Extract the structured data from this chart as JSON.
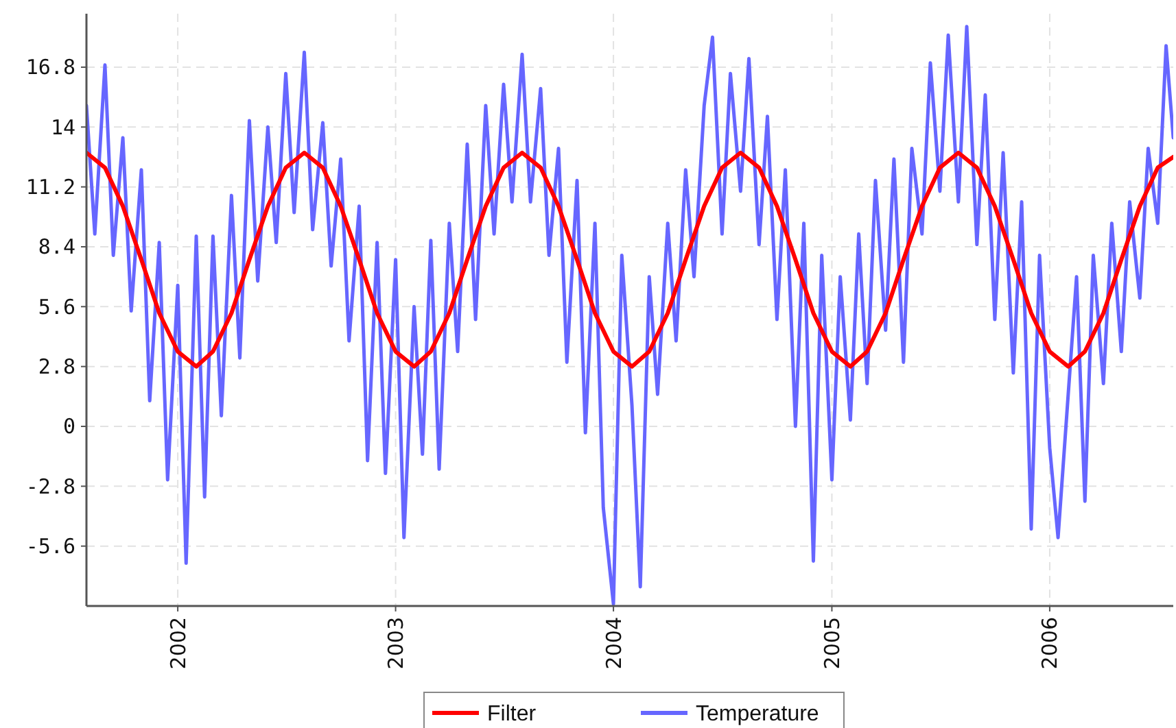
{
  "chart_data": {
    "type": "line",
    "xlim": [
      "2001-08-01",
      "2006-07-27"
    ],
    "xticks": [
      {
        "value": "2002-01-01",
        "label": "2002"
      },
      {
        "value": "2003-01-01",
        "label": "2003"
      },
      {
        "value": "2004-01-01",
        "label": "2004"
      },
      {
        "value": "2005-01-01",
        "label": "2005"
      },
      {
        "value": "2006-01-01",
        "label": "2006"
      }
    ],
    "ylim": [
      -8.4,
      19.3
    ],
    "yticks": [
      -5.6,
      -2.8,
      0,
      2.8,
      5.6,
      8.4,
      11.2,
      14,
      16.8
    ],
    "grid": true,
    "legend": "bottom",
    "series": [
      {
        "name": "Filter",
        "color": "#ff0000",
        "x": [
          "2001-08-01",
          "2001-09-01",
          "2001-10-01",
          "2001-11-01",
          "2001-12-01",
          "2002-01-01",
          "2002-02-01",
          "2002-03-01",
          "2002-04-01",
          "2002-05-01",
          "2002-06-01",
          "2002-07-01",
          "2002-08-01",
          "2002-09-01",
          "2002-10-01",
          "2002-11-01",
          "2002-12-01",
          "2003-01-01",
          "2003-02-01",
          "2003-03-01",
          "2003-04-01",
          "2003-05-01",
          "2003-06-01",
          "2003-07-01",
          "2003-08-01",
          "2003-09-01",
          "2003-10-01",
          "2003-11-01",
          "2003-12-01",
          "2004-01-01",
          "2004-02-01",
          "2004-03-01",
          "2004-04-01",
          "2004-05-01",
          "2004-06-01",
          "2004-07-01",
          "2004-08-01",
          "2004-09-01",
          "2004-10-01",
          "2004-11-01",
          "2004-12-01",
          "2005-01-01",
          "2005-02-01",
          "2005-03-01",
          "2005-04-01",
          "2005-05-01",
          "2005-06-01",
          "2005-07-01",
          "2005-08-01",
          "2005-09-01",
          "2005-10-01",
          "2005-11-01",
          "2005-12-01",
          "2006-01-01",
          "2006-02-01",
          "2006-03-01",
          "2006-04-01",
          "2006-05-01",
          "2006-06-01",
          "2006-07-01",
          "2006-07-27"
        ],
        "values": [
          12.8,
          12.1,
          10.3,
          7.8,
          5.3,
          3.5,
          2.8,
          3.5,
          5.3,
          7.8,
          10.3,
          12.1,
          12.8,
          12.1,
          10.3,
          7.8,
          5.3,
          3.5,
          2.8,
          3.5,
          5.3,
          7.8,
          10.3,
          12.1,
          12.8,
          12.1,
          10.3,
          7.8,
          5.3,
          3.5,
          2.8,
          3.5,
          5.3,
          7.8,
          10.3,
          12.1,
          12.8,
          12.1,
          10.3,
          7.8,
          5.3,
          3.5,
          2.8,
          3.5,
          5.3,
          7.8,
          10.3,
          12.1,
          12.8,
          12.1,
          10.3,
          7.8,
          5.3,
          3.5,
          2.8,
          3.5,
          5.3,
          7.8,
          10.3,
          12.1,
          12.6
        ]
      },
      {
        "name": "Temperature",
        "color": "#6666ff",
        "x": [
          "2001-08-01",
          "2001-08-15",
          "2001-09-01",
          "2001-09-15",
          "2001-10-01",
          "2001-10-15",
          "2001-11-01",
          "2001-11-15",
          "2001-12-01",
          "2001-12-15",
          "2002-01-01",
          "2002-01-15",
          "2002-02-01",
          "2002-02-15",
          "2002-03-01",
          "2002-03-15",
          "2002-04-01",
          "2002-04-15",
          "2002-05-01",
          "2002-05-15",
          "2002-06-01",
          "2002-06-15",
          "2002-07-01",
          "2002-07-15",
          "2002-08-01",
          "2002-08-15",
          "2002-09-01",
          "2002-09-15",
          "2002-10-01",
          "2002-10-15",
          "2002-11-01",
          "2002-11-15",
          "2002-12-01",
          "2002-12-15",
          "2003-01-01",
          "2003-01-15",
          "2003-02-01",
          "2003-02-15",
          "2003-03-01",
          "2003-03-15",
          "2003-04-01",
          "2003-04-15",
          "2003-05-01",
          "2003-05-15",
          "2003-06-01",
          "2003-06-15",
          "2003-07-01",
          "2003-07-15",
          "2003-08-01",
          "2003-08-15",
          "2003-09-01",
          "2003-09-15",
          "2003-10-01",
          "2003-10-15",
          "2003-11-01",
          "2003-11-15",
          "2003-12-01",
          "2003-12-15",
          "2004-01-01",
          "2004-01-15",
          "2004-02-01",
          "2004-02-15",
          "2004-03-01",
          "2004-03-15",
          "2004-04-01",
          "2004-04-15",
          "2004-05-01",
          "2004-05-15",
          "2004-06-01",
          "2004-06-15",
          "2004-07-01",
          "2004-07-15",
          "2004-08-01",
          "2004-08-15",
          "2004-09-01",
          "2004-09-15",
          "2004-10-01",
          "2004-10-15",
          "2004-11-01",
          "2004-11-15",
          "2004-12-01",
          "2004-12-15",
          "2005-01-01",
          "2005-01-15",
          "2005-02-01",
          "2005-02-15",
          "2005-03-01",
          "2005-03-15",
          "2005-04-01",
          "2005-04-15",
          "2005-05-01",
          "2005-05-15",
          "2005-06-01",
          "2005-06-15",
          "2005-07-01",
          "2005-07-15",
          "2005-08-01",
          "2005-08-15",
          "2005-09-01",
          "2005-09-15",
          "2005-10-01",
          "2005-10-15",
          "2005-11-01",
          "2005-11-15",
          "2005-12-01",
          "2005-12-15",
          "2006-01-01",
          "2006-01-15",
          "2006-02-01",
          "2006-02-15",
          "2006-03-01",
          "2006-03-15",
          "2006-04-01",
          "2006-04-15",
          "2006-05-01",
          "2006-05-15",
          "2006-06-01",
          "2006-06-15",
          "2006-07-01",
          "2006-07-15",
          "2006-07-27"
        ],
        "values": [
          15.0,
          9.0,
          16.9,
          8.0,
          13.5,
          5.4,
          12.0,
          1.2,
          8.6,
          -2.5,
          6.6,
          -6.4,
          8.9,
          -3.3,
          8.9,
          0.5,
          10.8,
          3.2,
          14.3,
          6.8,
          14.0,
          8.6,
          16.5,
          10.0,
          17.5,
          9.2,
          14.2,
          7.5,
          12.5,
          4.0,
          10.3,
          -1.6,
          8.6,
          -2.2,
          7.8,
          -5.2,
          5.6,
          -1.3,
          8.7,
          -2.0,
          9.5,
          3.5,
          13.2,
          5.0,
          15.0,
          9.0,
          16.0,
          10.5,
          17.4,
          10.5,
          15.8,
          8.0,
          13.0,
          3.0,
          11.5,
          -0.3,
          9.5,
          -3.8,
          -8.3,
          8.0,
          1.0,
          -7.5,
          7.0,
          1.5,
          9.5,
          4.0,
          12.0,
          7.0,
          15.0,
          18.2,
          9.0,
          16.5,
          11.0,
          17.2,
          8.5,
          14.5,
          5.0,
          12.0,
          0.0,
          9.5,
          -6.3,
          8.0,
          -2.5,
          7.0,
          0.3,
          9.0,
          2.0,
          11.5,
          4.5,
          12.5,
          3.0,
          13.0,
          9.0,
          17.0,
          11.0,
          18.3,
          10.5,
          18.7,
          8.5,
          15.5,
          5.0,
          12.8,
          2.5,
          10.5,
          -4.8,
          8.0,
          -1.0,
          -5.2,
          1.5,
          7.0,
          -3.5,
          8.0,
          2.0,
          9.5,
          3.5,
          10.5,
          6.0,
          13.0,
          9.5,
          17.8,
          13.5
        ]
      }
    ]
  }
}
